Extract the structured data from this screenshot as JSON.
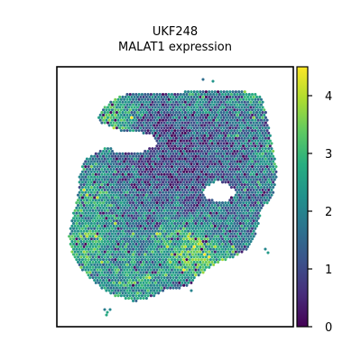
{
  "chart_data": {
    "type": "scatter",
    "subtype": "spatial-hexbin",
    "title": "UKF248",
    "subtitle": "MALAT1 expression",
    "xlabel": "",
    "ylabel": "",
    "colormap": "viridis",
    "color_range": [
      0,
      4.5
    ],
    "colorbar": {
      "ticks": [
        0,
        1,
        2,
        3,
        4
      ],
      "tick_labels": [
        "0",
        "1",
        "2",
        "3",
        "4"
      ]
    },
    "grid": false,
    "axis_ticks_visible": false,
    "background": "#ffffff",
    "spot_density": "dense hexagonal tissue spots"
  }
}
